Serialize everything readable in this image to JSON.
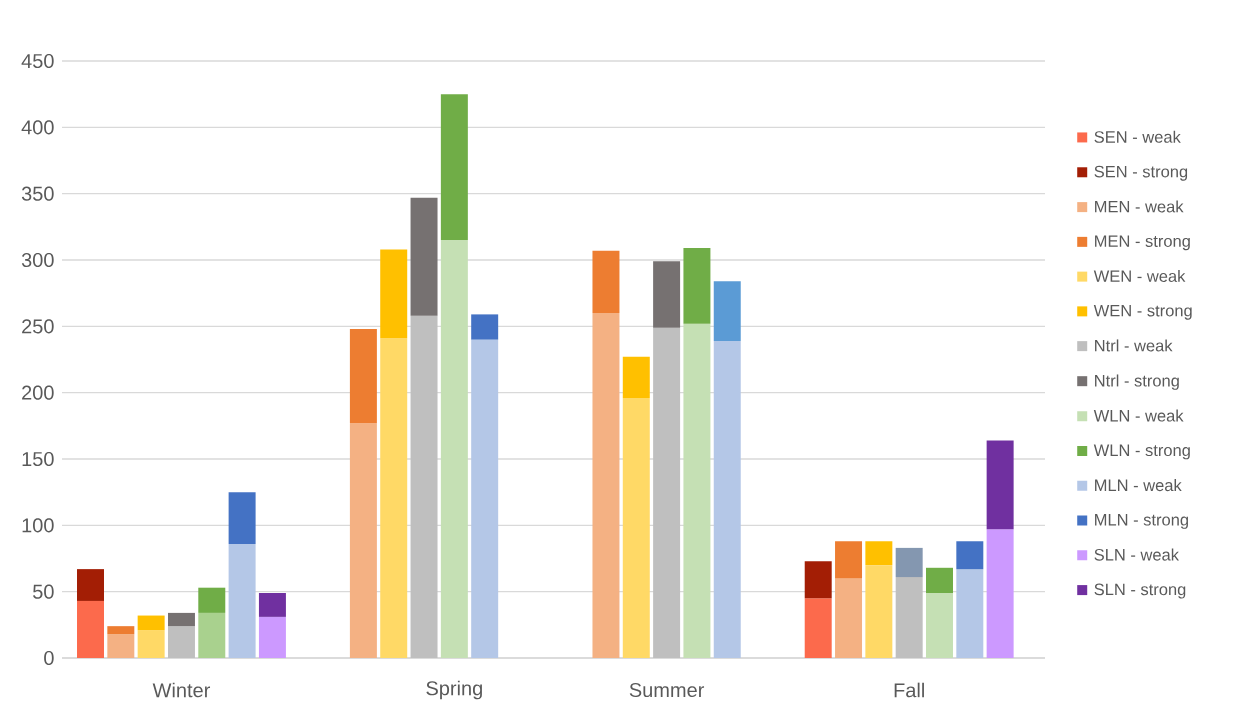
{
  "chart_data": {
    "type": "bar",
    "stacked": true,
    "categories": [
      null,
      null,
      null,
      "Winter",
      null,
      null,
      null,
      null,
      null,
      null,
      null,
      null,
      "Spring",
      null,
      null,
      null,
      null,
      null,
      null,
      "Summer",
      null,
      null,
      null,
      null,
      null,
      null,
      null,
      "Fall",
      null,
      null,
      null
    ],
    "ylim": [
      0,
      450
    ],
    "yticks": [
      0,
      50,
      100,
      150,
      200,
      250,
      300,
      350,
      400,
      450
    ],
    "grid": "y",
    "legend": "right",
    "series": [
      {
        "name": "SEN - weak",
        "color": "#fc6a4c",
        "values": [
          43,
          null,
          null,
          null,
          null,
          null,
          null,
          null,
          null,
          null,
          null,
          null,
          null,
          null,
          null,
          null,
          null,
          null,
          null,
          null,
          null,
          null,
          null,
          null,
          45,
          null,
          null,
          null,
          null,
          null,
          null
        ]
      },
      {
        "name": "SEN - strong",
        "color": "#a31e05",
        "values": [
          24,
          null,
          null,
          null,
          null,
          null,
          null,
          null,
          null,
          null,
          null,
          null,
          null,
          null,
          null,
          null,
          null,
          null,
          null,
          null,
          null,
          null,
          null,
          null,
          28,
          null,
          null,
          null,
          null,
          null,
          null
        ]
      },
      {
        "name": "MEN - weak",
        "color": "#f4b183",
        "values": [
          null,
          18,
          null,
          null,
          null,
          null,
          null,
          null,
          null,
          177,
          null,
          null,
          null,
          null,
          null,
          null,
          null,
          260,
          null,
          null,
          null,
          null,
          null,
          null,
          null,
          60,
          null,
          null,
          null,
          null,
          null
        ]
      },
      {
        "name": "MEN - strong",
        "color": "#ed7d31",
        "values": [
          null,
          6,
          null,
          null,
          null,
          null,
          null,
          null,
          null,
          71,
          null,
          null,
          null,
          null,
          null,
          null,
          null,
          47,
          null,
          null,
          null,
          null,
          null,
          null,
          null,
          28,
          null,
          null,
          null,
          null,
          null
        ]
      },
      {
        "name": "WEN - weak",
        "color": "#ffd966",
        "values": [
          null,
          null,
          21,
          null,
          null,
          null,
          null,
          null,
          null,
          null,
          241,
          null,
          null,
          null,
          null,
          null,
          null,
          null,
          196,
          null,
          null,
          null,
          null,
          null,
          null,
          null,
          70,
          null,
          null,
          null,
          null
        ]
      },
      {
        "name": "WEN - strong",
        "color": "#ffc000",
        "values": [
          null,
          null,
          11,
          null,
          null,
          null,
          null,
          null,
          null,
          null,
          67,
          null,
          null,
          null,
          null,
          null,
          null,
          null,
          31,
          null,
          null,
          null,
          null,
          null,
          null,
          null,
          18,
          null,
          null,
          null,
          null
        ]
      },
      {
        "name": "Ntrl - weak",
        "color": "#bfbfbf",
        "values": [
          null,
          null,
          null,
          24,
          null,
          null,
          null,
          null,
          null,
          null,
          null,
          258,
          null,
          null,
          null,
          null,
          null,
          null,
          null,
          249,
          null,
          null,
          null,
          null,
          null,
          null,
          null,
          61,
          null,
          null,
          null
        ]
      },
      {
        "name": "Ntrl - strong",
        "color": "#767171",
        "colors": [
          null,
          null,
          null,
          null,
          null,
          null,
          null,
          null,
          null,
          null,
          null,
          null,
          null,
          null,
          null,
          null,
          null,
          null,
          null,
          null,
          null,
          null,
          null,
          null,
          null,
          null,
          null,
          "#8497b0",
          null,
          null,
          null
        ],
        "values": [
          null,
          null,
          null,
          10,
          null,
          null,
          null,
          null,
          null,
          null,
          null,
          89,
          null,
          null,
          null,
          null,
          null,
          null,
          null,
          50,
          null,
          null,
          null,
          null,
          null,
          null,
          null,
          22,
          null,
          null,
          null
        ]
      },
      {
        "name": "WLN - weak",
        "color": "#c5e0b4",
        "colors": [
          null,
          null,
          null,
          null,
          "#a9d18e",
          null,
          null,
          null,
          null,
          null,
          null,
          null,
          null,
          null,
          null,
          null,
          null,
          null,
          null,
          null,
          null,
          null,
          null,
          null,
          null,
          null,
          null,
          null,
          null,
          null,
          null
        ],
        "values": [
          null,
          null,
          null,
          null,
          34,
          null,
          null,
          null,
          null,
          null,
          null,
          null,
          315,
          null,
          null,
          null,
          null,
          null,
          null,
          null,
          252,
          null,
          null,
          null,
          null,
          null,
          null,
          null,
          49,
          null,
          null
        ]
      },
      {
        "name": "WLN - strong",
        "color": "#70ad47",
        "values": [
          null,
          null,
          null,
          null,
          19,
          null,
          null,
          null,
          null,
          null,
          null,
          null,
          110,
          null,
          null,
          null,
          null,
          null,
          null,
          null,
          57,
          null,
          null,
          null,
          null,
          null,
          null,
          null,
          19,
          null,
          null
        ]
      },
      {
        "name": "MLN - weak",
        "color": "#b4c7e7",
        "values": [
          null,
          null,
          null,
          null,
          null,
          86,
          null,
          null,
          null,
          null,
          null,
          null,
          null,
          240,
          null,
          null,
          null,
          null,
          null,
          null,
          null,
          239,
          null,
          null,
          null,
          null,
          null,
          null,
          null,
          67,
          null
        ]
      },
      {
        "name": "MLN - strong",
        "color": "#4472c4",
        "colors": [
          null,
          null,
          null,
          null,
          null,
          null,
          null,
          null,
          null,
          null,
          null,
          null,
          null,
          null,
          null,
          null,
          null,
          null,
          null,
          null,
          null,
          "#5b9bd5",
          null,
          null,
          null,
          null,
          null,
          null,
          null,
          null,
          null
        ],
        "values": [
          null,
          null,
          null,
          null,
          null,
          39,
          null,
          null,
          null,
          null,
          null,
          null,
          null,
          19,
          null,
          null,
          null,
          null,
          null,
          null,
          null,
          45,
          null,
          null,
          null,
          null,
          null,
          null,
          null,
          21,
          null
        ]
      },
      {
        "name": "SLN - weak",
        "color": "#cc99ff",
        "values": [
          null,
          null,
          null,
          null,
          null,
          null,
          31,
          null,
          null,
          null,
          null,
          null,
          null,
          null,
          null,
          null,
          null,
          null,
          null,
          null,
          null,
          null,
          null,
          null,
          null,
          null,
          null,
          null,
          null,
          null,
          97
        ]
      },
      {
        "name": "SLN - strong",
        "color": "#7030a0",
        "values": [
          null,
          null,
          null,
          null,
          null,
          null,
          18,
          null,
          null,
          null,
          null,
          null,
          null,
          null,
          null,
          null,
          null,
          null,
          null,
          null,
          null,
          null,
          null,
          null,
          null,
          null,
          null,
          null,
          null,
          null,
          67
        ]
      }
    ]
  }
}
